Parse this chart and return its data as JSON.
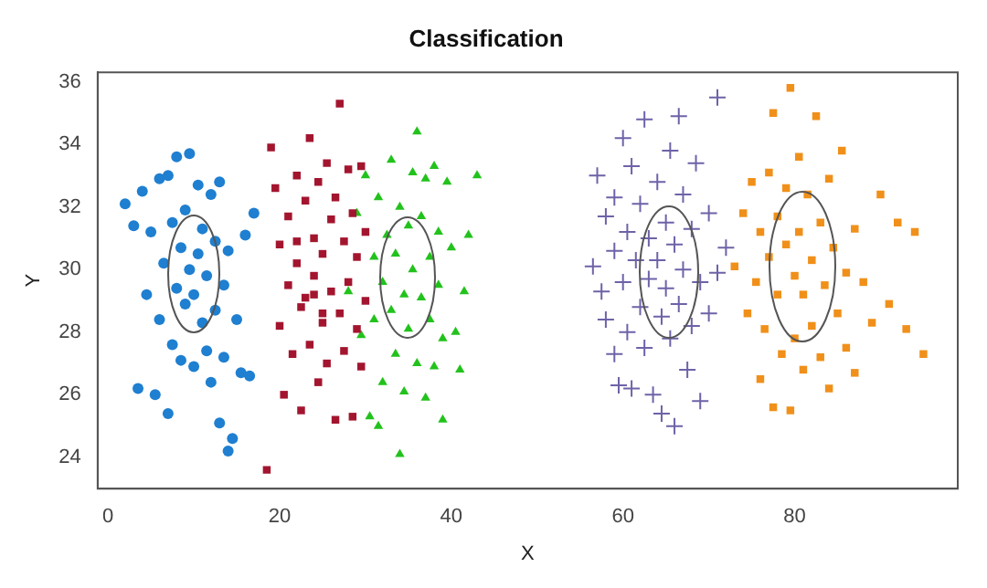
{
  "chart_data": {
    "type": "scatter",
    "title": "Classification",
    "xlabel": "X",
    "ylabel": "Y",
    "xlim": [
      -1.2,
      99
    ],
    "ylim": [
      23,
      36.3
    ],
    "xticks": [
      0,
      20,
      40,
      60,
      80
    ],
    "yticks": [
      24,
      26,
      28,
      30,
      32,
      34,
      36
    ],
    "grid": false,
    "legend": false,
    "series": [
      {
        "color": "#1f7fd0",
        "marker": "circle",
        "x": [
          2,
          3,
          3.5,
          4,
          4.5,
          5,
          5.5,
          6,
          6,
          6.5,
          7,
          7,
          7.5,
          7.5,
          8,
          8,
          8.5,
          8.5,
          9,
          9,
          9.5,
          9.5,
          10,
          10,
          10.5,
          10.5,
          11,
          11,
          11.5,
          11.5,
          12,
          12,
          12.5,
          12.5,
          13,
          13,
          13.5,
          13.5,
          14,
          14,
          14.5,
          15,
          15.5,
          16,
          16.5,
          17
        ],
        "values": [
          32.1,
          31.4,
          26.2,
          32.5,
          29.2,
          31.2,
          26,
          32.9,
          28.4,
          30.2,
          33,
          25.4,
          31.5,
          27.6,
          29.4,
          33.6,
          30.7,
          27.1,
          31.9,
          28.9,
          30,
          33.7,
          29.2,
          26.9,
          32.7,
          30.5,
          28.3,
          31.3,
          27.4,
          29.8,
          32.4,
          26.4,
          30.9,
          28.7,
          25.1,
          32.8,
          29.5,
          27.2,
          24.2,
          30.6,
          24.6,
          28.4,
          26.7,
          31.1,
          26.6,
          31.8
        ]
      },
      {
        "color": "#a3152f",
        "marker": "square",
        "x": [
          18.5,
          19,
          19.5,
          20,
          20,
          20.5,
          21,
          21,
          21.5,
          22,
          22,
          22.5,
          22.5,
          23,
          23,
          23.5,
          23.5,
          24,
          24,
          24.5,
          24.5,
          25,
          25,
          25.5,
          25.5,
          26,
          26,
          26.5,
          26.5,
          27,
          27,
          27.5,
          27.5,
          28,
          28,
          28.5,
          28.5,
          29,
          29,
          29.5,
          29.5,
          30,
          30,
          22,
          24,
          25
        ],
        "values": [
          23.6,
          33.9,
          32.6,
          30.8,
          28.2,
          26,
          31.7,
          29.5,
          27.3,
          33,
          30.2,
          28.8,
          25.5,
          32.2,
          29.1,
          34.2,
          27.6,
          31,
          29.8,
          26.4,
          32.8,
          28.3,
          30.5,
          33.4,
          27,
          31.6,
          29.3,
          25.2,
          32.3,
          28.6,
          35.3,
          30.9,
          27.4,
          33.2,
          29.6,
          25.3,
          31.8,
          28.1,
          30.4,
          33.3,
          26.9,
          31.2,
          29,
          30.9,
          29.2,
          28.6
        ]
      },
      {
        "color": "#22c21c",
        "marker": "triangle",
        "x": [
          28,
          29,
          29.5,
          30,
          30.5,
          31,
          31,
          31.5,
          31.5,
          32,
          32,
          32.5,
          33,
          33,
          33.5,
          33.5,
          34,
          34,
          34.5,
          34.5,
          35,
          35,
          35.5,
          35.5,
          36,
          36,
          36.5,
          36.5,
          37,
          37,
          37.5,
          37.5,
          38,
          38,
          38.5,
          38.5,
          39,
          39,
          39.5,
          40,
          40.5,
          41,
          42,
          43,
          41.5
        ],
        "values": [
          29.3,
          31.8,
          27.9,
          33,
          25.3,
          30.4,
          28.4,
          32.3,
          25,
          29.6,
          26.4,
          31.1,
          28.7,
          33.5,
          30.5,
          27.3,
          32,
          24.1,
          29.2,
          26.1,
          31.4,
          28.1,
          33.1,
          30,
          34.4,
          27,
          31.7,
          29.1,
          25.9,
          32.9,
          30.4,
          28.4,
          33.3,
          26.9,
          31.2,
          29.5,
          27.8,
          25.2,
          32.8,
          30.7,
          28,
          26.8,
          31.1,
          33,
          29.3
        ]
      },
      {
        "color": "#6f62a8",
        "marker": "cross",
        "x": [
          56.5,
          57,
          57.5,
          58,
          58,
          59,
          59,
          59,
          59.5,
          60,
          60,
          60.5,
          60.5,
          61,
          61,
          61.5,
          62,
          62,
          62.5,
          62.5,
          63,
          63,
          63.5,
          64,
          64,
          64.5,
          64.5,
          65,
          65,
          65.5,
          65.5,
          66,
          66,
          66.5,
          66.5,
          67,
          67,
          67.5,
          68,
          68,
          68.5,
          69,
          69,
          70,
          70,
          71,
          71,
          72
        ],
        "values": [
          30.1,
          33,
          29.3,
          31.7,
          28.4,
          32.3,
          30.6,
          27.3,
          26.3,
          34.2,
          29.6,
          31.2,
          28,
          33.3,
          26.2,
          30.3,
          32.1,
          28.8,
          34.8,
          27.5,
          31,
          29.7,
          26,
          32.8,
          30.3,
          28.5,
          25.4,
          31.5,
          29.4,
          33.8,
          27.8,
          30.8,
          25,
          34.9,
          28.9,
          32.4,
          30,
          26.8,
          31.3,
          28.2,
          33.4,
          29.6,
          25.8,
          31.8,
          28.6,
          35.5,
          29.9,
          30.7
        ]
      },
      {
        "color": "#f0901a",
        "marker": "square",
        "x": [
          73,
          74,
          74.5,
          75,
          75.5,
          76,
          76,
          76.5,
          77,
          77,
          77.5,
          77.5,
          78,
          78,
          78.5,
          79,
          79,
          79.5,
          79.5,
          80,
          80,
          80.5,
          80.5,
          81,
          81,
          81.5,
          82,
          82,
          82.5,
          83,
          83,
          83.5,
          84,
          84,
          84.5,
          85,
          85.5,
          86,
          86,
          87,
          87,
          88,
          89,
          90,
          91,
          92,
          93,
          94,
          95
        ],
        "values": [
          30.1,
          31.8,
          28.6,
          32.8,
          29.6,
          31.2,
          26.5,
          28.1,
          33.1,
          30.4,
          35,
          25.6,
          31.7,
          29.2,
          27.3,
          32.6,
          30.8,
          25.5,
          35.8,
          29.8,
          27.8,
          33.6,
          31.2,
          29.2,
          26.8,
          32.4,
          30.3,
          28.2,
          34.9,
          31.5,
          27.2,
          29.5,
          32.9,
          26.2,
          30.7,
          28.6,
          33.8,
          29.9,
          27.5,
          31.3,
          26.7,
          29.6,
          28.3,
          32.4,
          28.9,
          31.5,
          28.1,
          31.2,
          27.3
        ]
      }
    ]
  }
}
